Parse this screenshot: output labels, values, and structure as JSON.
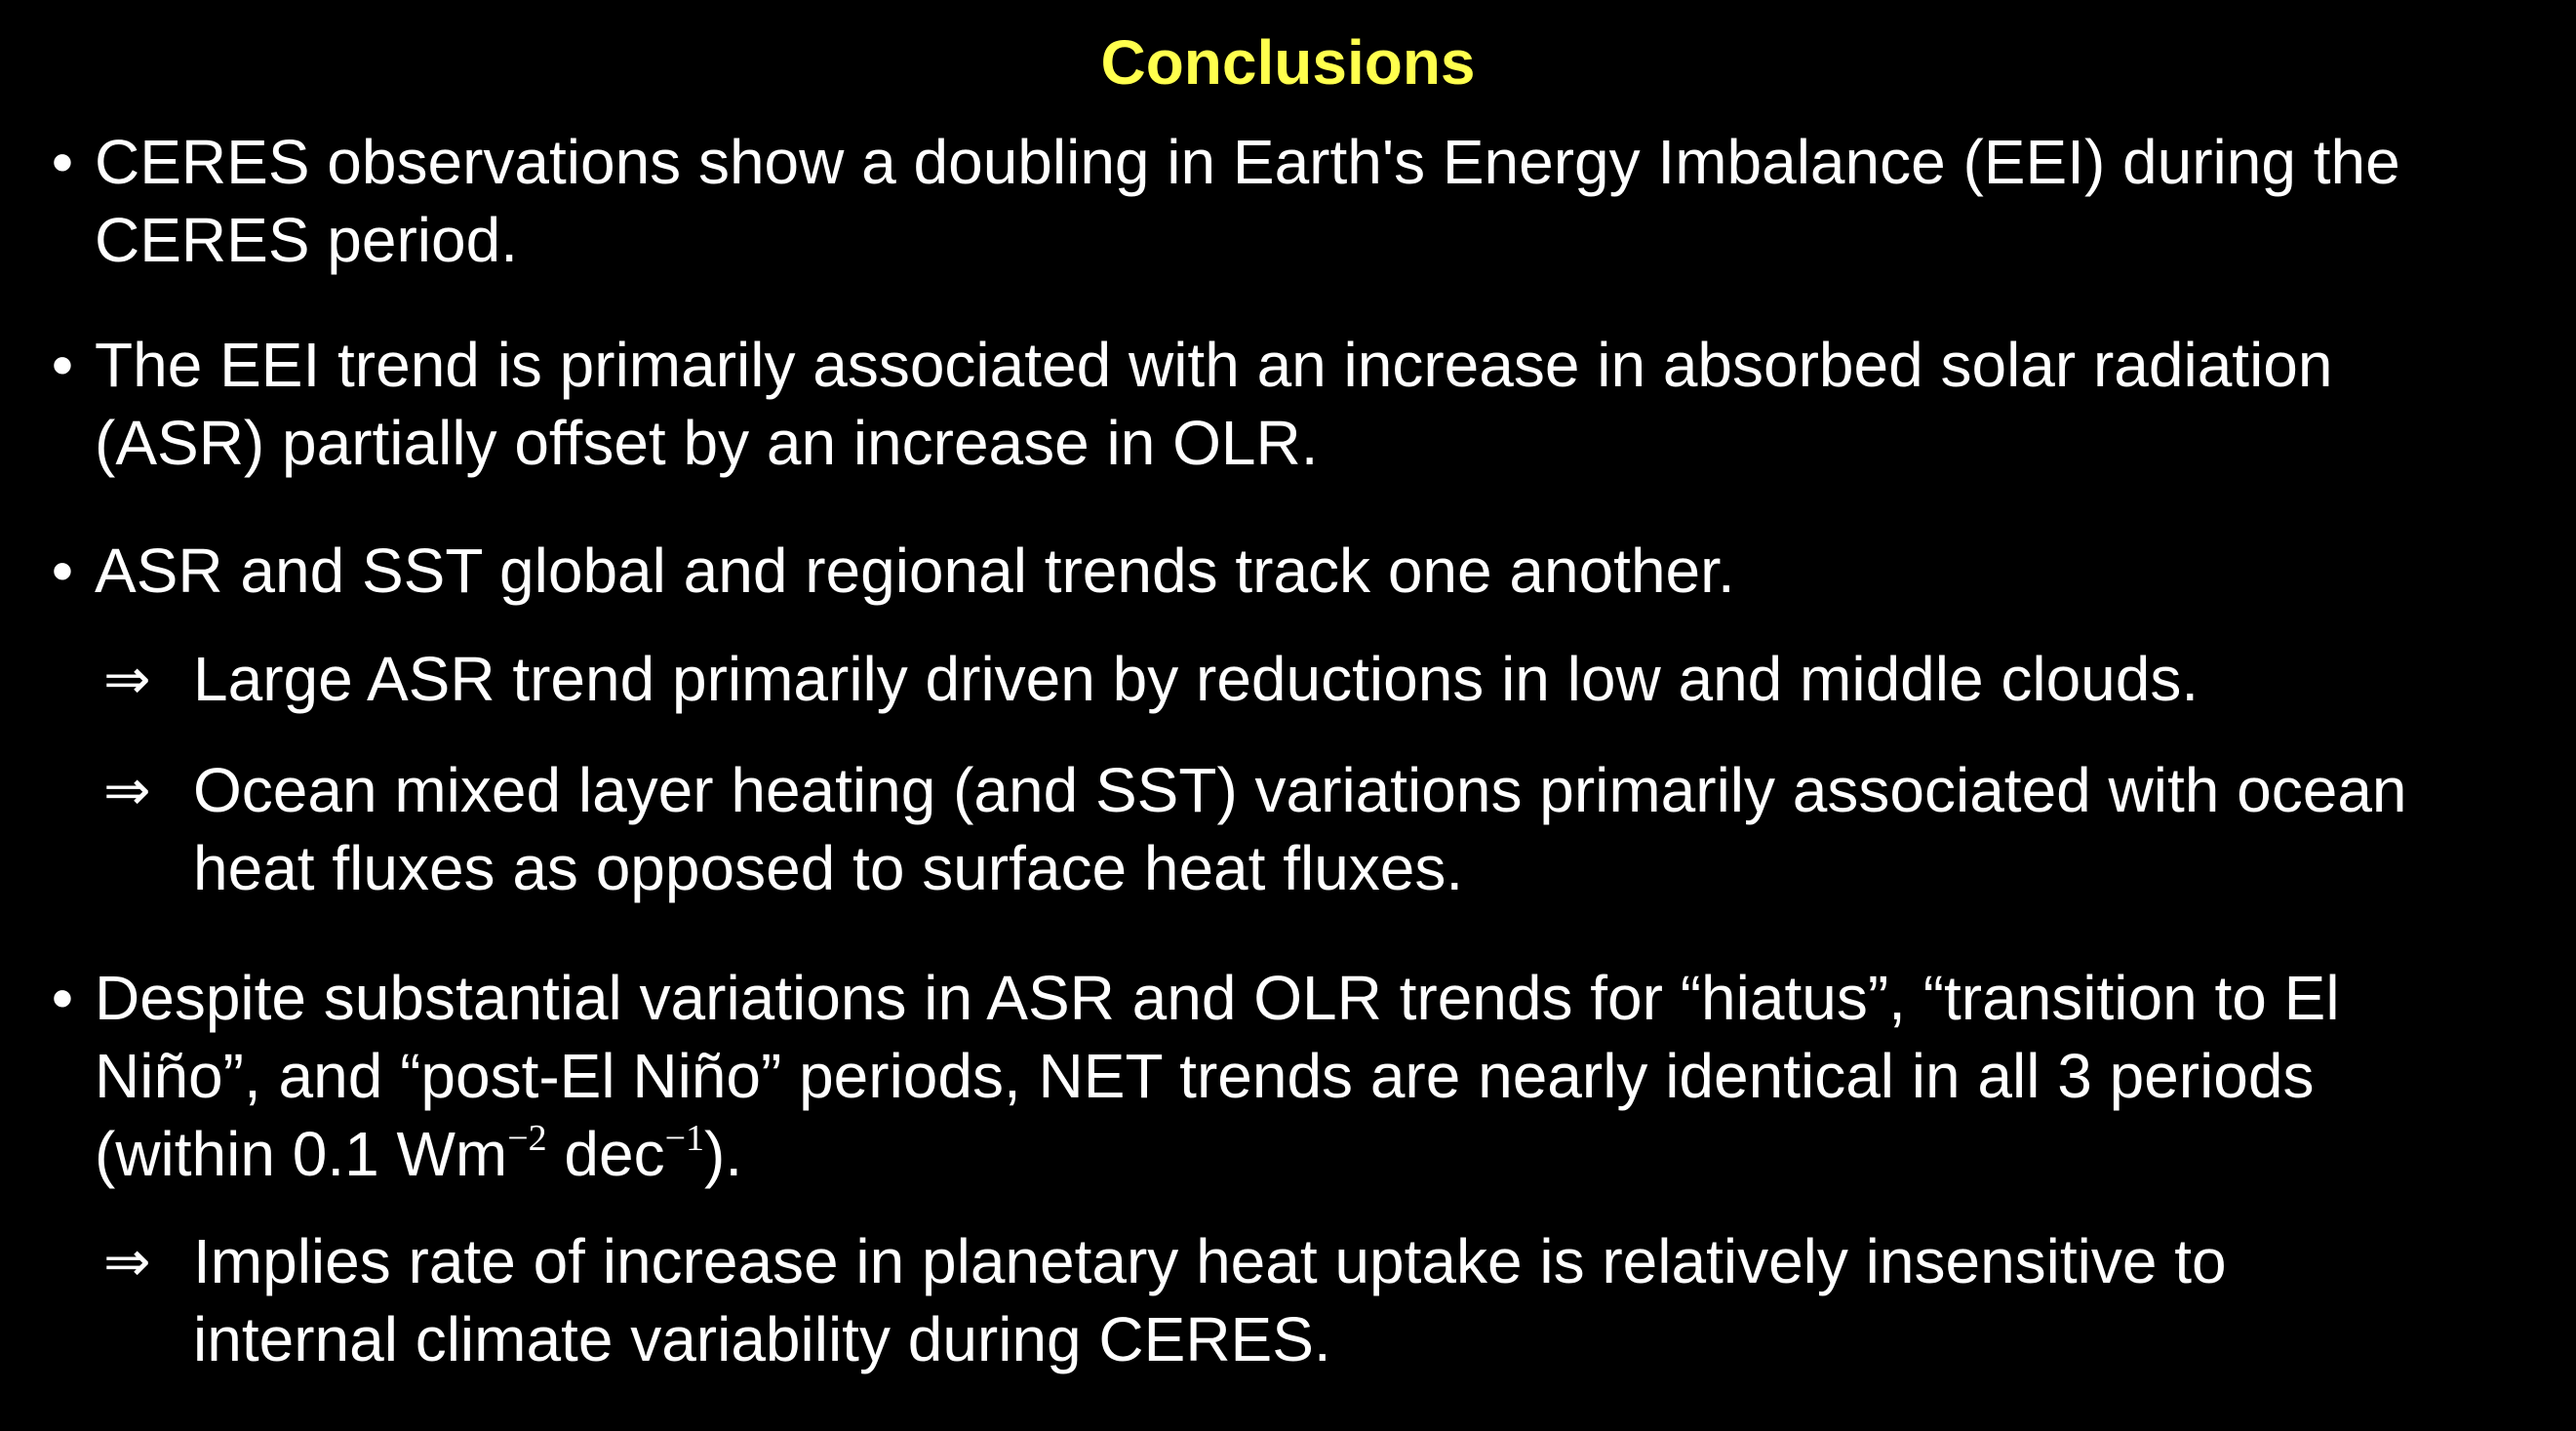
{
  "title": "Conclusions",
  "colors": {
    "title": "#ffff4d",
    "text": "#ffffff",
    "background": "#000000"
  },
  "bullets": [
    {
      "lines": [
        "CERES observations show a doubling in Earth's Energy Imbalance (EEI) during the",
        "CERES period."
      ]
    },
    {
      "lines": [
        "The EEI trend is primarily associated with an increase in absorbed solar radiation",
        "(ASR) partially offset by an increase in OLR."
      ]
    },
    {
      "lines": [
        "ASR and SST global and regional trends track one another."
      ]
    },
    {
      "lines": [
        "Despite substantial variations in ASR and OLR trends for “hiatus”, “transition to El",
        "Niño”, and “post-El Niño” periods,  NET trends are nearly identical in all 3 periods"
      ],
      "line3": {
        "pre": "(within 0.1 Wm",
        "sup1": "−2",
        "mid": " dec",
        "sup2": "−1",
        "post": ")."
      }
    }
  ],
  "sub_bullets": [
    {
      "arrow": "⇒",
      "lines": [
        "Large ASR trend primarily driven by reductions in low and middle clouds."
      ]
    },
    {
      "arrow": "⇒",
      "lines": [
        "Ocean mixed layer heating (and SST) variations primarily associated with ocean",
        "heat fluxes as opposed to surface heat fluxes."
      ]
    },
    {
      "arrow": "⇒",
      "lines": [
        "Implies rate of increase in planetary heat uptake is relatively insensitive to",
        "internal climate variability during CERES."
      ]
    }
  ],
  "bullet_symbol": "•"
}
